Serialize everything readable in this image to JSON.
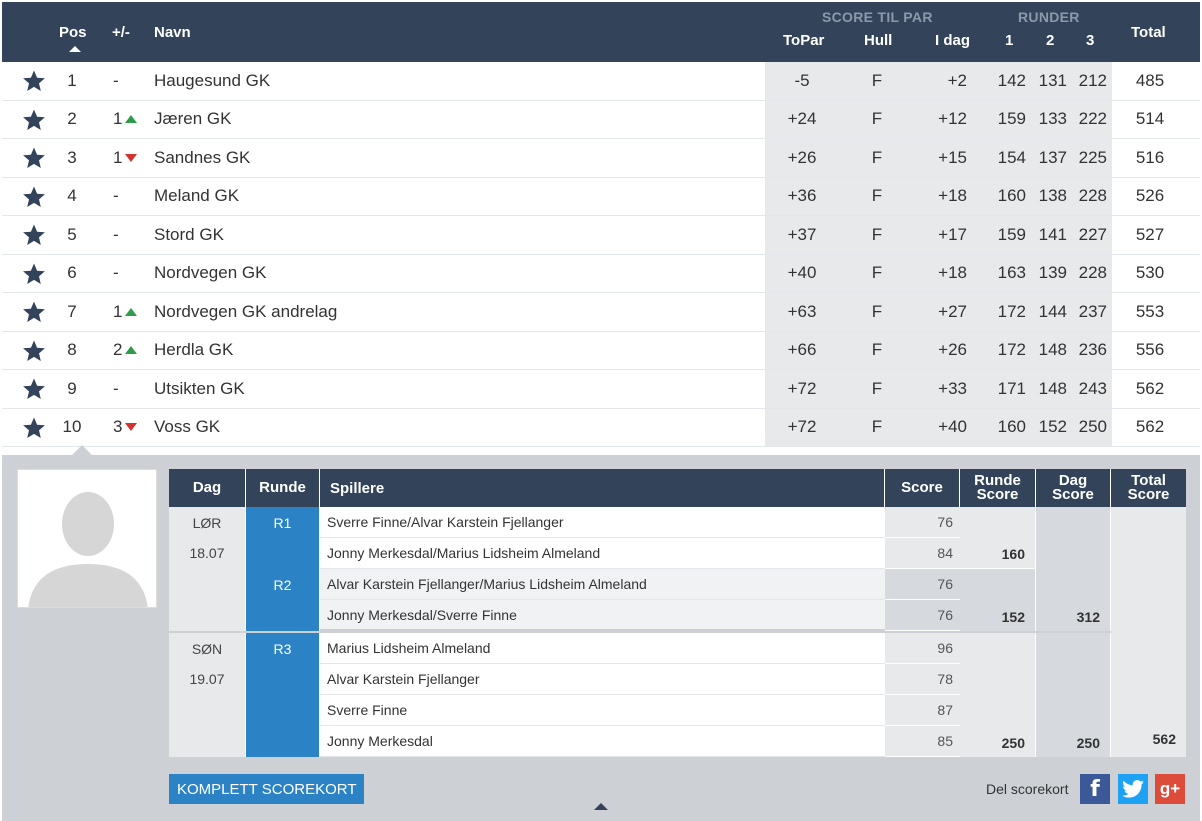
{
  "header": {
    "pos": "Pos",
    "change": "+/-",
    "name": "Navn",
    "score_group": "SCORE TIL PAR",
    "rounds_group": "RUNDER",
    "topar": "ToPar",
    "hull": "Hull",
    "idag": "I dag",
    "r1": "1",
    "r2": "2",
    "r3": "3",
    "total": "Total"
  },
  "rows": [
    {
      "pos": "1",
      "change": "-",
      "dir": "",
      "name": "Haugesund GK",
      "topar": "-5",
      "hull": "F",
      "idag": "+2",
      "r1": "142",
      "r2": "131",
      "r3": "212",
      "total": "485"
    },
    {
      "pos": "2",
      "change": "1",
      "dir": "up",
      "name": "Jæren GK",
      "topar": "+24",
      "hull": "F",
      "idag": "+12",
      "r1": "159",
      "r2": "133",
      "r3": "222",
      "total": "514"
    },
    {
      "pos": "3",
      "change": "1",
      "dir": "down",
      "name": "Sandnes GK",
      "topar": "+26",
      "hull": "F",
      "idag": "+15",
      "r1": "154",
      "r2": "137",
      "r3": "225",
      "total": "516"
    },
    {
      "pos": "4",
      "change": "-",
      "dir": "",
      "name": "Meland GK",
      "topar": "+36",
      "hull": "F",
      "idag": "+18",
      "r1": "160",
      "r2": "138",
      "r3": "228",
      "total": "526"
    },
    {
      "pos": "5",
      "change": "-",
      "dir": "",
      "name": "Stord GK",
      "topar": "+37",
      "hull": "F",
      "idag": "+17",
      "r1": "159",
      "r2": "141",
      "r3": "227",
      "total": "527"
    },
    {
      "pos": "6",
      "change": "-",
      "dir": "",
      "name": "Nordvegen GK",
      "topar": "+40",
      "hull": "F",
      "idag": "+18",
      "r1": "163",
      "r2": "139",
      "r3": "228",
      "total": "530"
    },
    {
      "pos": "7",
      "change": "1",
      "dir": "up",
      "name": "Nordvegen GK andrelag",
      "topar": "+63",
      "hull": "F",
      "idag": "+27",
      "r1": "172",
      "r2": "144",
      "r3": "237",
      "total": "553"
    },
    {
      "pos": "8",
      "change": "2",
      "dir": "up",
      "name": "Herdla GK",
      "topar": "+66",
      "hull": "F",
      "idag": "+26",
      "r1": "172",
      "r2": "148",
      "r3": "236",
      "total": "556"
    },
    {
      "pos": "9",
      "change": "-",
      "dir": "",
      "name": "Utsikten GK",
      "topar": "+72",
      "hull": "F",
      "idag": "+33",
      "r1": "171",
      "r2": "148",
      "r3": "243",
      "total": "562"
    },
    {
      "pos": "10",
      "change": "3",
      "dir": "down",
      "name": "Voss GK",
      "topar": "+72",
      "hull": "F",
      "idag": "+40",
      "r1": "160",
      "r2": "152",
      "r3": "250",
      "total": "562"
    }
  ],
  "scorecard": {
    "headers": {
      "dag": "Dag",
      "runde": "Runde",
      "spillere": "Spillere",
      "score": "Score",
      "runde_score": "Runde Score",
      "dag_score": "Dag Score",
      "total_score": "Total Score"
    },
    "day1": {
      "day": "LØR",
      "date": "18.07",
      "dag_score": "312"
    },
    "day2": {
      "day": "SØN",
      "date": "19.07",
      "dag_score": "250"
    },
    "r1": {
      "label": "R1",
      "runde_score": "160",
      "players": [
        {
          "name": "Sverre Finne/Alvar Karstein Fjellanger",
          "score": "76"
        },
        {
          "name": "Jonny Merkesdal/Marius Lidsheim Almeland",
          "score": "84"
        }
      ]
    },
    "r2": {
      "label": "R2",
      "runde_score": "152",
      "players": [
        {
          "name": "Alvar Karstein Fjellanger/Marius Lidsheim Almeland",
          "score": "76"
        },
        {
          "name": "Jonny Merkesdal/Sverre Finne",
          "score": "76"
        }
      ]
    },
    "r3": {
      "label": "R3",
      "runde_score": "250",
      "players": [
        {
          "name": "Marius Lidsheim Almeland",
          "score": "96"
        },
        {
          "name": "Alvar Karstein Fjellanger",
          "score": "78"
        },
        {
          "name": "Sverre Finne",
          "score": "87"
        },
        {
          "name": "Jonny Merkesdal",
          "score": "85"
        }
      ]
    },
    "total_score": "562"
  },
  "actions": {
    "full_scorecard": "KOMPLETT SCOREKORT",
    "share_label": "Del scorekort",
    "facebook": "f",
    "googleplus": "g+"
  },
  "colors": {
    "header": "#33445a",
    "accent": "#2b83c6",
    "up": "#2e9c4a",
    "down": "#d3312b"
  }
}
